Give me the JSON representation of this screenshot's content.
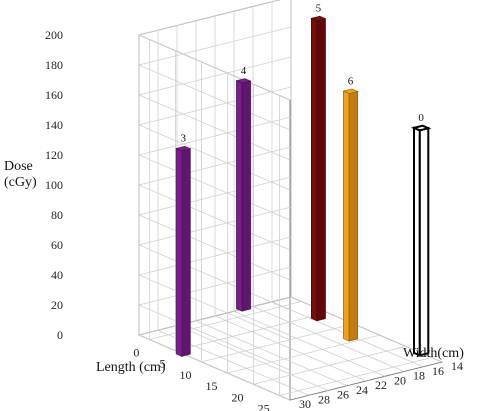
{
  "chart_data": {
    "type": "bar",
    "variant": "3d-bar",
    "axes": {
      "x": {
        "label": "Length (cm)",
        "ticks": [
          0,
          5,
          10,
          15,
          20,
          25
        ],
        "range": [
          -2,
          27
        ]
      },
      "y": {
        "label": "Width(cm)",
        "ticks": [
          14,
          16,
          18,
          20,
          22,
          24,
          26,
          28,
          30
        ],
        "range": [
          14,
          30
        ]
      },
      "z": {
        "label_lines": [
          "Dose",
          "(cGy)"
        ],
        "ticks": [
          0,
          20,
          40,
          60,
          80,
          100,
          120,
          140,
          160,
          180,
          200
        ],
        "range": [
          0,
          200
        ]
      }
    },
    "grid": true,
    "bars": [
      {
        "label": "3",
        "length": 6.5,
        "width": 30,
        "dose": 137,
        "color": "#7a1e8c"
      },
      {
        "label": "4",
        "length": -2,
        "width": 19,
        "dose": 152,
        "color": "#7a1e8c"
      },
      {
        "label": "0",
        "length": 23,
        "width": 14,
        "dose": 150,
        "color": "#ffffff"
      },
      {
        "label": "5",
        "length": 6,
        "width": 15.5,
        "dose": 200,
        "color": "#7a0c0c"
      },
      {
        "label": "6",
        "length": 14,
        "width": 16.5,
        "dose": 165,
        "color": "#f6a018"
      }
    ]
  }
}
